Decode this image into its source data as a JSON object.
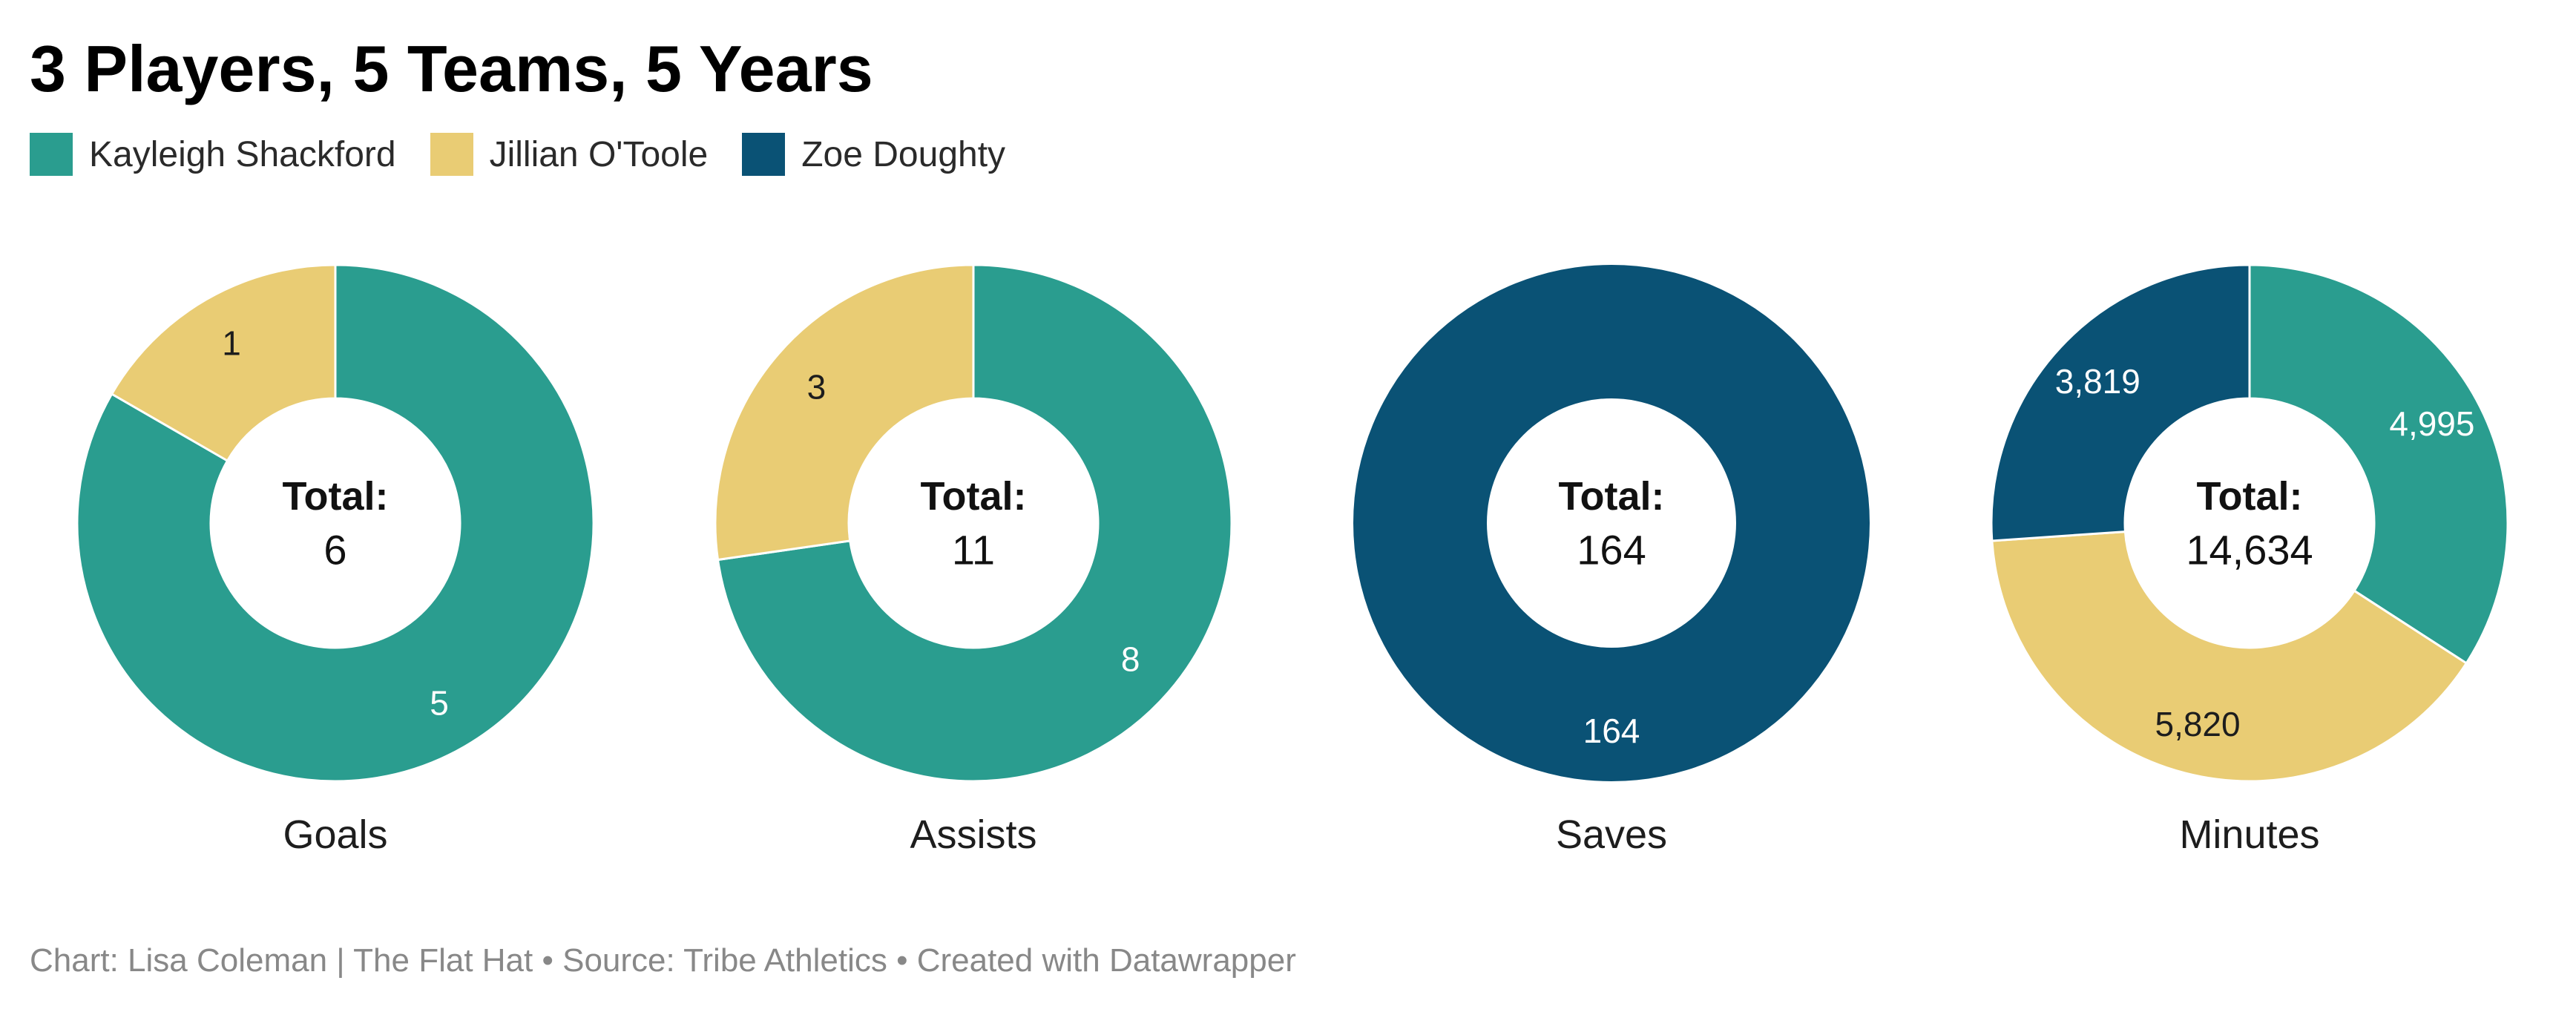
{
  "title": "3 Players, 5 Teams, 5 Years",
  "legend": [
    {
      "name": "Kayleigh Shackford",
      "color": "#2a9d8f"
    },
    {
      "name": "Jillian O'Toole",
      "color": "#e9cc74"
    },
    {
      "name": "Zoe Doughty",
      "color": "#0a5275"
    }
  ],
  "chart_data": [
    {
      "type": "pie",
      "label": "Goals",
      "total_label": "Total:",
      "total": "6",
      "slices": [
        {
          "name": "Kayleigh Shackford",
          "value": 5,
          "label": "5",
          "color": "#2a9d8f",
          "text_color": "#ffffff"
        },
        {
          "name": "Jillian O'Toole",
          "value": 1,
          "label": "1",
          "color": "#e9cc74",
          "text_color": "#1d1d1d"
        }
      ]
    },
    {
      "type": "pie",
      "label": "Assists",
      "total_label": "Total:",
      "total": "11",
      "slices": [
        {
          "name": "Kayleigh Shackford",
          "value": 8,
          "label": "8",
          "color": "#2a9d8f",
          "text_color": "#ffffff"
        },
        {
          "name": "Jillian O'Toole",
          "value": 3,
          "label": "3",
          "color": "#e9cc74",
          "text_color": "#1d1d1d"
        }
      ]
    },
    {
      "type": "pie",
      "label": "Saves",
      "total_label": "Total:",
      "total": "164",
      "slices": [
        {
          "name": "Zoe Doughty",
          "value": 164,
          "label": "164",
          "color": "#0a5275",
          "text_color": "#ffffff"
        }
      ]
    },
    {
      "type": "pie",
      "label": "Minutes",
      "total_label": "Total:",
      "total": "14,634",
      "slices": [
        {
          "name": "Kayleigh Shackford",
          "value": 4995,
          "label": "4,995",
          "color": "#2a9d8f",
          "text_color": "#ffffff"
        },
        {
          "name": "Jillian O'Toole",
          "value": 5820,
          "label": "5,820",
          "color": "#e9cc74",
          "text_color": "#1d1d1d"
        },
        {
          "name": "Zoe Doughty",
          "value": 3819,
          "label": "3,819",
          "color": "#0a5275",
          "text_color": "#ffffff"
        }
      ]
    }
  ],
  "footer": "Chart: Lisa Coleman | The Flat Hat • Source: Tribe Athletics • Created with Datawrapper"
}
